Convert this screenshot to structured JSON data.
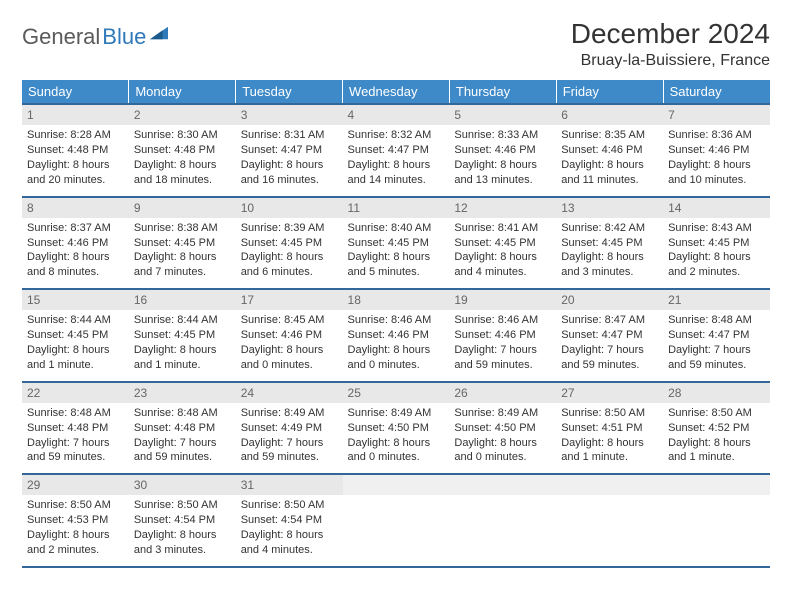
{
  "brand": {
    "part1": "General",
    "part2": "Blue"
  },
  "title": "December 2024",
  "location": "Bruay-la-Buissiere, France",
  "colors": {
    "header_bg": "#3e8ac9",
    "rule": "#336699",
    "daynum_bg": "#e8e8e8",
    "text": "#333333",
    "muted": "#666666"
  },
  "weekdays": [
    "Sunday",
    "Monday",
    "Tuesday",
    "Wednesday",
    "Thursday",
    "Friday",
    "Saturday"
  ],
  "weeks": [
    [
      {
        "n": "1",
        "sr": "8:28 AM",
        "ss": "4:48 PM",
        "dl": "8 hours and 20 minutes."
      },
      {
        "n": "2",
        "sr": "8:30 AM",
        "ss": "4:48 PM",
        "dl": "8 hours and 18 minutes."
      },
      {
        "n": "3",
        "sr": "8:31 AM",
        "ss": "4:47 PM",
        "dl": "8 hours and 16 minutes."
      },
      {
        "n": "4",
        "sr": "8:32 AM",
        "ss": "4:47 PM",
        "dl": "8 hours and 14 minutes."
      },
      {
        "n": "5",
        "sr": "8:33 AM",
        "ss": "4:46 PM",
        "dl": "8 hours and 13 minutes."
      },
      {
        "n": "6",
        "sr": "8:35 AM",
        "ss": "4:46 PM",
        "dl": "8 hours and 11 minutes."
      },
      {
        "n": "7",
        "sr": "8:36 AM",
        "ss": "4:46 PM",
        "dl": "8 hours and 10 minutes."
      }
    ],
    [
      {
        "n": "8",
        "sr": "8:37 AM",
        "ss": "4:46 PM",
        "dl": "8 hours and 8 minutes."
      },
      {
        "n": "9",
        "sr": "8:38 AM",
        "ss": "4:45 PM",
        "dl": "8 hours and 7 minutes."
      },
      {
        "n": "10",
        "sr": "8:39 AM",
        "ss": "4:45 PM",
        "dl": "8 hours and 6 minutes."
      },
      {
        "n": "11",
        "sr": "8:40 AM",
        "ss": "4:45 PM",
        "dl": "8 hours and 5 minutes."
      },
      {
        "n": "12",
        "sr": "8:41 AM",
        "ss": "4:45 PM",
        "dl": "8 hours and 4 minutes."
      },
      {
        "n": "13",
        "sr": "8:42 AM",
        "ss": "4:45 PM",
        "dl": "8 hours and 3 minutes."
      },
      {
        "n": "14",
        "sr": "8:43 AM",
        "ss": "4:45 PM",
        "dl": "8 hours and 2 minutes."
      }
    ],
    [
      {
        "n": "15",
        "sr": "8:44 AM",
        "ss": "4:45 PM",
        "dl": "8 hours and 1 minute."
      },
      {
        "n": "16",
        "sr": "8:44 AM",
        "ss": "4:45 PM",
        "dl": "8 hours and 1 minute."
      },
      {
        "n": "17",
        "sr": "8:45 AM",
        "ss": "4:46 PM",
        "dl": "8 hours and 0 minutes."
      },
      {
        "n": "18",
        "sr": "8:46 AM",
        "ss": "4:46 PM",
        "dl": "8 hours and 0 minutes."
      },
      {
        "n": "19",
        "sr": "8:46 AM",
        "ss": "4:46 PM",
        "dl": "7 hours and 59 minutes."
      },
      {
        "n": "20",
        "sr": "8:47 AM",
        "ss": "4:47 PM",
        "dl": "7 hours and 59 minutes."
      },
      {
        "n": "21",
        "sr": "8:48 AM",
        "ss": "4:47 PM",
        "dl": "7 hours and 59 minutes."
      }
    ],
    [
      {
        "n": "22",
        "sr": "8:48 AM",
        "ss": "4:48 PM",
        "dl": "7 hours and 59 minutes."
      },
      {
        "n": "23",
        "sr": "8:48 AM",
        "ss": "4:48 PM",
        "dl": "7 hours and 59 minutes."
      },
      {
        "n": "24",
        "sr": "8:49 AM",
        "ss": "4:49 PM",
        "dl": "7 hours and 59 minutes."
      },
      {
        "n": "25",
        "sr": "8:49 AM",
        "ss": "4:50 PM",
        "dl": "8 hours and 0 minutes."
      },
      {
        "n": "26",
        "sr": "8:49 AM",
        "ss": "4:50 PM",
        "dl": "8 hours and 0 minutes."
      },
      {
        "n": "27",
        "sr": "8:50 AM",
        "ss": "4:51 PM",
        "dl": "8 hours and 1 minute."
      },
      {
        "n": "28",
        "sr": "8:50 AM",
        "ss": "4:52 PM",
        "dl": "8 hours and 1 minute."
      }
    ],
    [
      {
        "n": "29",
        "sr": "8:50 AM",
        "ss": "4:53 PM",
        "dl": "8 hours and 2 minutes."
      },
      {
        "n": "30",
        "sr": "8:50 AM",
        "ss": "4:54 PM",
        "dl": "8 hours and 3 minutes."
      },
      {
        "n": "31",
        "sr": "8:50 AM",
        "ss": "4:54 PM",
        "dl": "8 hours and 4 minutes."
      },
      null,
      null,
      null,
      null
    ]
  ],
  "labels": {
    "sunrise": "Sunrise: ",
    "sunset": "Sunset: ",
    "daylight": "Daylight: "
  }
}
